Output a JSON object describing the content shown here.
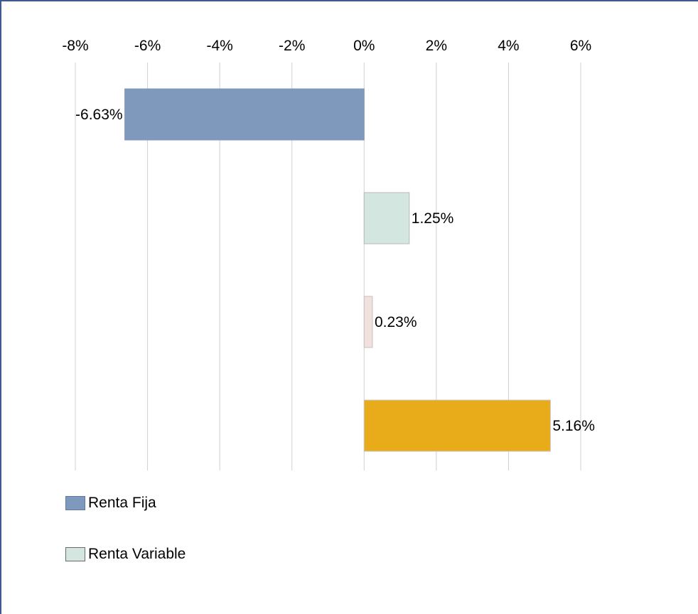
{
  "chart_data": {
    "type": "bar",
    "orientation": "horizontal",
    "title": "",
    "xlabel": "",
    "ylabel": "",
    "xlim": [
      -8,
      6
    ],
    "x_ticks": [
      "-8%",
      "-6%",
      "-4%",
      "-2%",
      "0%",
      "2%",
      "4%",
      "6%"
    ],
    "x_tick_values": [
      -8,
      -6,
      -4,
      -2,
      0,
      2,
      4,
      6
    ],
    "grid": "vertical",
    "bars": [
      {
        "value": -6.63,
        "label": "-6.63%",
        "color": "#7f99bc",
        "border": "#7f99bc"
      },
      {
        "value": 1.25,
        "label": "1.25%",
        "color": "#d3e6e0",
        "border": "#b9b9b9"
      },
      {
        "value": 0.23,
        "label": "0.23%",
        "color": "#f0e1de",
        "border": "#c9c0bd"
      },
      {
        "value": 5.16,
        "label": "5.16%",
        "color": "#e8ac1a",
        "border": "#c9c0bd"
      }
    ],
    "legend": [
      {
        "name": "Renta Fija",
        "color": "#7f99bc",
        "border": "#5f7aa0"
      },
      {
        "name": "Renta Variable",
        "color": "#d3e6e0",
        "border": "#6b6b6b"
      }
    ],
    "legend_position": "bottom-left"
  }
}
